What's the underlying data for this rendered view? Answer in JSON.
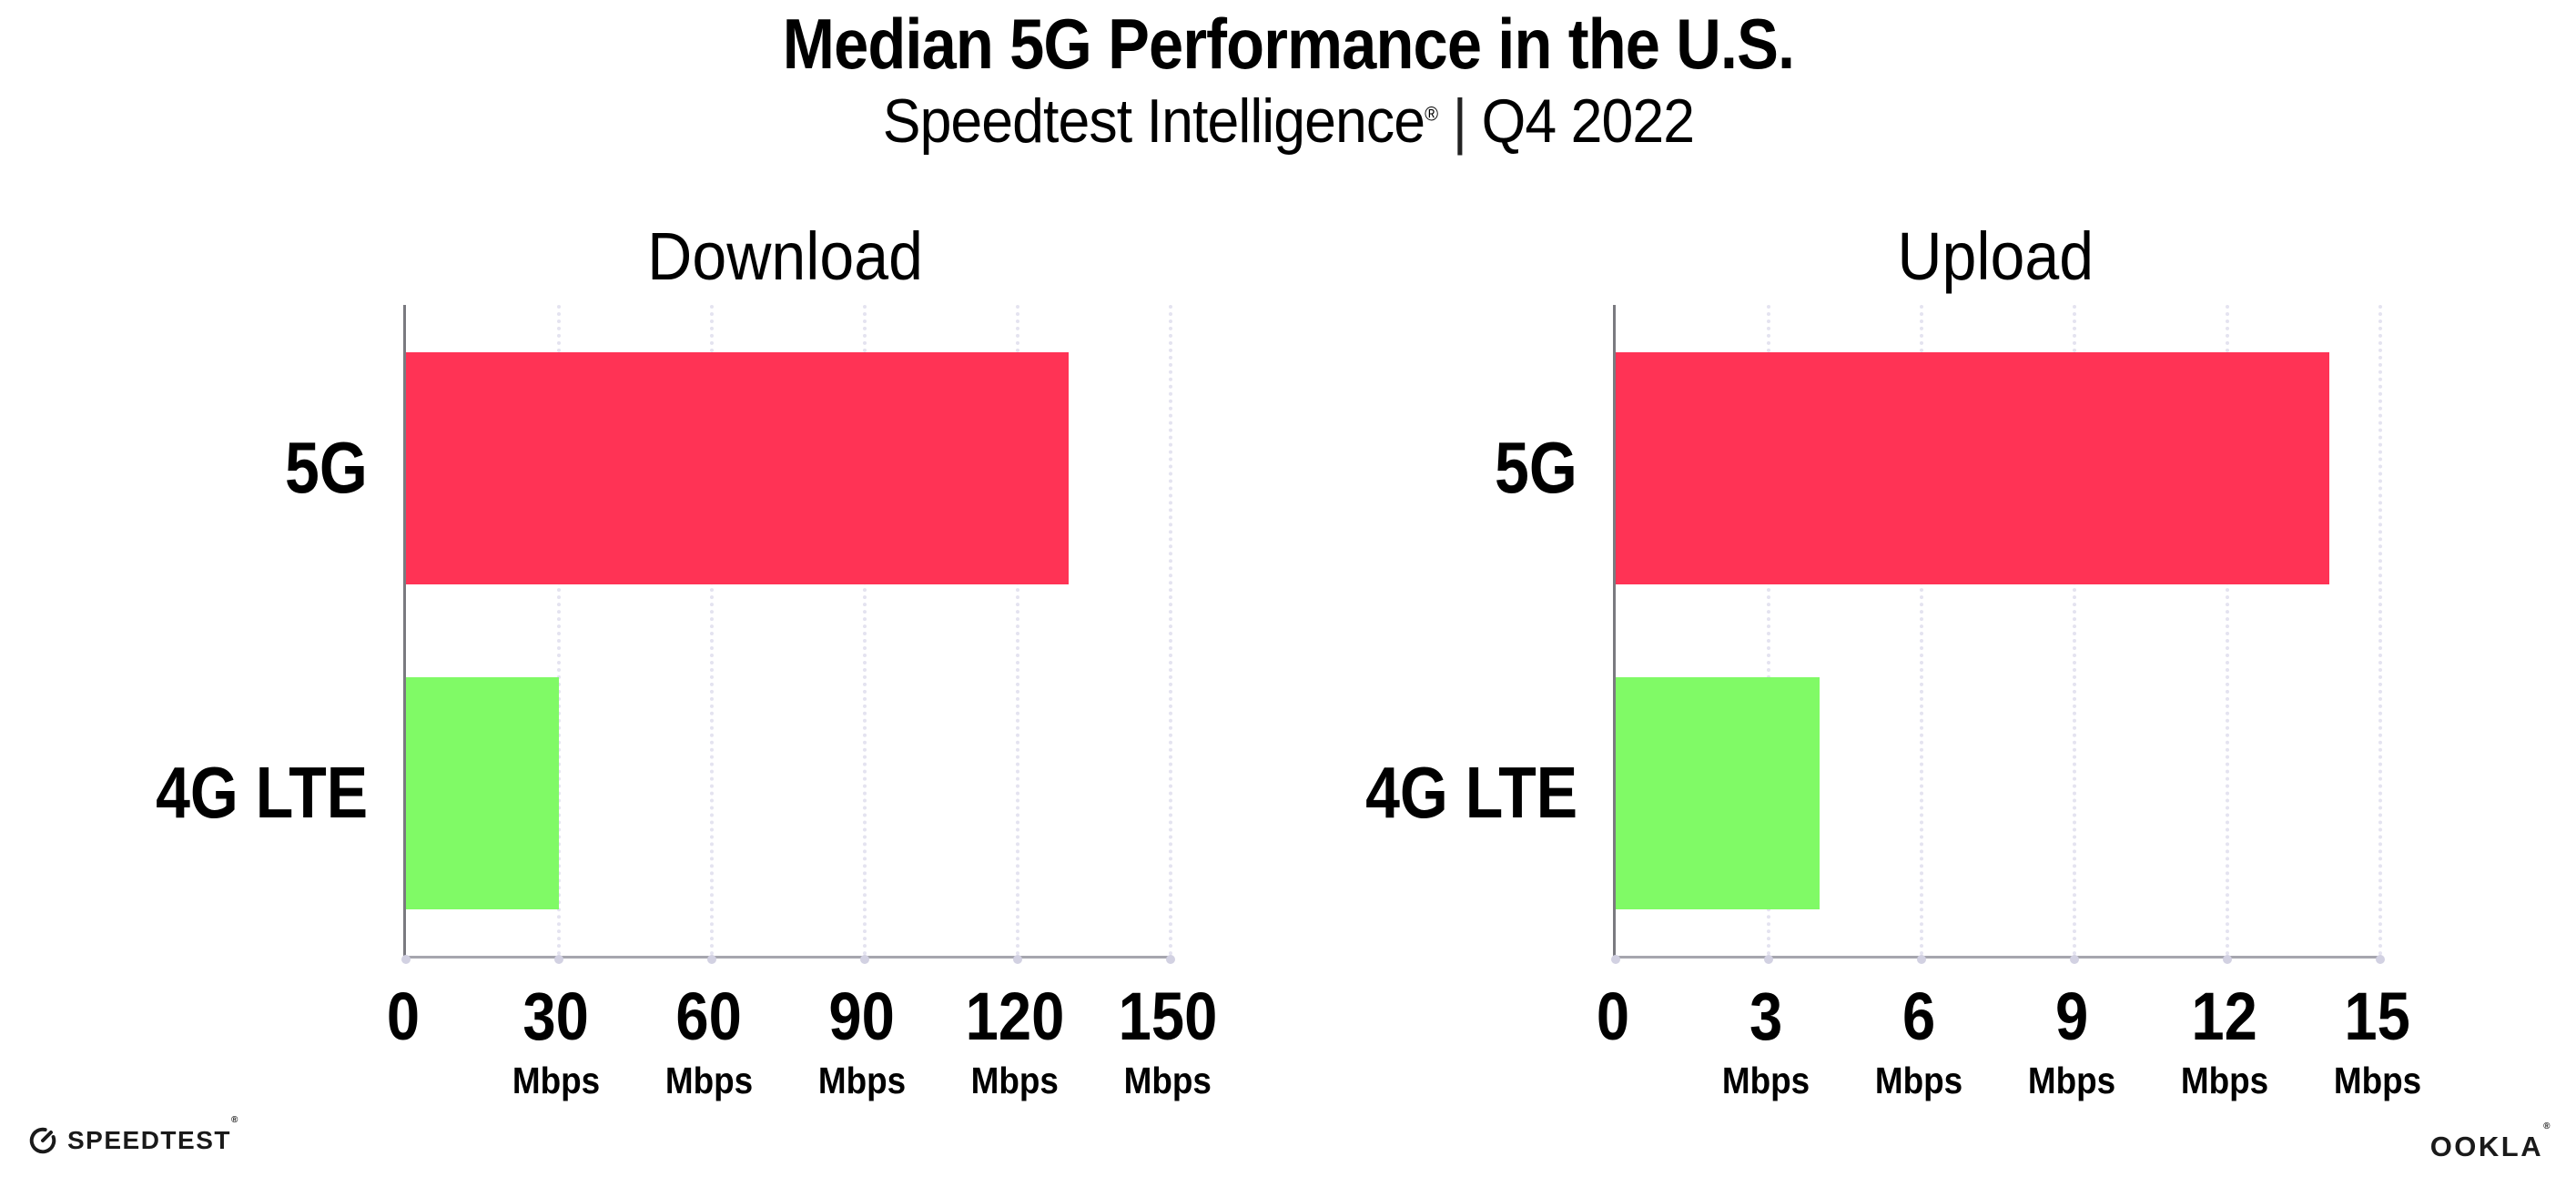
{
  "header": {
    "title": "Median 5G Performance in the U.S.",
    "subtitle": {
      "brand": "Speedtest Intelligence",
      "registered_mark": "®",
      "separator": "|",
      "period": "Q4 2022"
    }
  },
  "chart_data": [
    {
      "type": "bar",
      "orientation": "horizontal",
      "title": "Download",
      "unit": "Mbps",
      "categories": [
        "5G",
        "4G LTE"
      ],
      "values": [
        130,
        30
      ],
      "xlim": [
        0,
        150
      ],
      "xticks": [
        0,
        30,
        60,
        90,
        120,
        150
      ],
      "bar_colors": [
        "#ff3355",
        "#80fa66"
      ],
      "grid": "dotted-vertical",
      "legend": "none"
    },
    {
      "type": "bar",
      "orientation": "horizontal",
      "title": "Upload",
      "unit": "Mbps",
      "categories": [
        "5G",
        "4G LTE"
      ],
      "values": [
        14,
        4
      ],
      "xlim": [
        0,
        15
      ],
      "xticks": [
        0,
        3,
        6,
        9,
        12,
        15
      ],
      "bar_colors": [
        "#ff3355",
        "#80fa66"
      ],
      "grid": "dotted-vertical",
      "legend": "none"
    }
  ],
  "footer": {
    "speedtest": {
      "label": "SPEEDTEST",
      "registered_mark": "®"
    },
    "ookla": {
      "label": "OOKLA",
      "registered_mark": "®"
    }
  },
  "colors": {
    "bar_5g": "#ff3355",
    "bar_4g_lte": "#80fa66",
    "axis_left": "#7a7a80",
    "axis_bottom": "#a6a6ae",
    "gridline": "#e4e3f0",
    "tick_dot": "#d2d1e2",
    "text": "#000000"
  }
}
